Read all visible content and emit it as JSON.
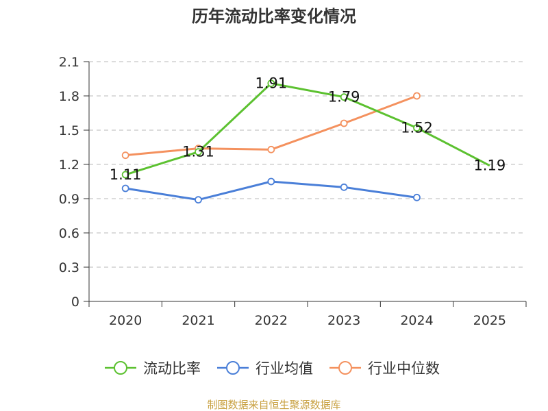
{
  "chart_data": {
    "type": "line",
    "title": "历年流动比率变化情况",
    "categories": [
      "2020",
      "2021",
      "2022",
      "2023",
      "2024",
      "2025"
    ],
    "ylim": [
      0,
      2.1
    ],
    "yticks": [
      "0",
      "0.3",
      "0.6",
      "0.9",
      "1.2",
      "1.5",
      "1.8",
      "2.1"
    ],
    "grid": true,
    "legend_position": "bottom",
    "series": [
      {
        "name": "流动比率",
        "color": "#5cc130",
        "values": [
          1.11,
          1.31,
          1.91,
          1.79,
          1.52,
          1.19
        ],
        "labels": [
          "1.11",
          "1.31",
          "1.91",
          "1.79",
          "1.52",
          "1.19"
        ]
      },
      {
        "name": "行业均值",
        "color": "#4a7fd8",
        "values": [
          0.99,
          0.89,
          1.05,
          1.0,
          0.91,
          null
        ]
      },
      {
        "name": "行业中位数",
        "color": "#f4915e",
        "values": [
          1.28,
          1.34,
          1.33,
          1.56,
          1.8,
          null
        ]
      }
    ],
    "source": "制图数据来自恒生聚源数据库"
  }
}
